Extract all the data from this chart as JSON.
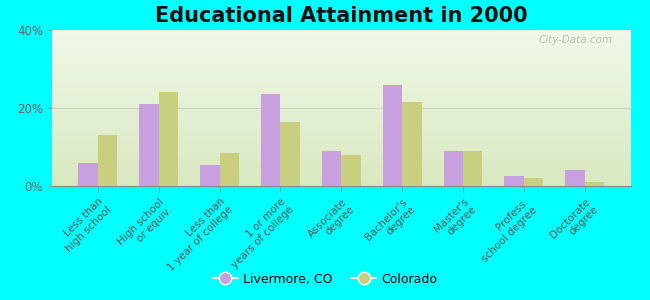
{
  "title": "Educational Attainment in 2000",
  "categories": [
    "Less than\nhigh school",
    "High school\nor equiv.",
    "Less than\n1 year of college",
    "1 or more\nyears of college",
    "Associate\ndegree",
    "Bachelor's\ndegree",
    "Master's\ndegree",
    "Profess.\nschool degree",
    "Doctorate\ndegree"
  ],
  "livermore_values": [
    6,
    21,
    5.5,
    23.5,
    9,
    26,
    9,
    2.5,
    4
  ],
  "colorado_values": [
    13,
    24,
    8.5,
    16.5,
    8,
    21.5,
    9,
    2,
    1
  ],
  "livermore_color": "#c8a0e0",
  "colorado_color": "#c8d080",
  "background_color": "#00ffff",
  "plot_bg_top": "#d8e8c0",
  "plot_bg_bottom": "#f0f8e8",
  "ylim": [
    0,
    40
  ],
  "yticks": [
    0,
    20,
    40
  ],
  "ytick_labels": [
    "0%",
    "20%",
    "40%"
  ],
  "watermark": "City-Data.com",
  "legend_labels": [
    "Livermore, CO",
    "Colorado"
  ],
  "title_fontsize": 15,
  "tick_fontsize": 7.5
}
